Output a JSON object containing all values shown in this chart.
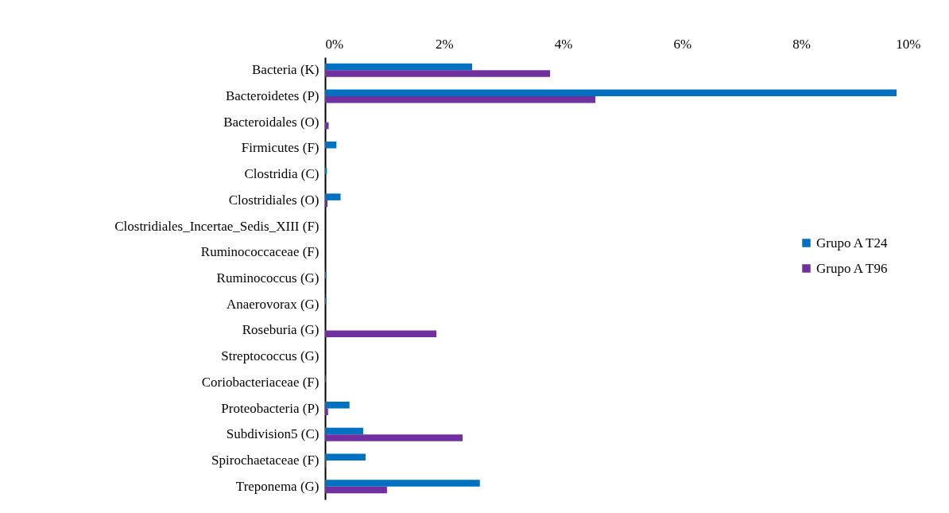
{
  "chart_data": {
    "type": "bar",
    "orientation": "horizontal",
    "categories": [
      "Bacteria (K)",
      "Bacteroidetes (P)",
      "Bacteroidales (O)",
      "Firmicutes (F)",
      "Clostridia (C)",
      "Clostridiales (O)",
      "Clostridiales_Incertae_Sedis_XIII (F)",
      "Ruminococcaceae (F)",
      "Ruminococcus (G)",
      "Anaerovorax (G)",
      "Roseburia (G)",
      "Streptococcus (G)",
      "Coriobacteriaceae (F)",
      "Proteobacteria (P)",
      "Subdivision5 (C)",
      "Spirochaetaceae (F)",
      "Treponema (G)"
    ],
    "series": [
      {
        "name": "Grupo A T24",
        "color": "#0070c0",
        "values": [
          2.47,
          9.6,
          0,
          0.19,
          0.03,
          0.26,
          0,
          0,
          0.02,
          0.02,
          0,
          0,
          0.01,
          0.41,
          0.64,
          0.68,
          2.6
        ]
      },
      {
        "name": "Grupo A T96",
        "color": "#7030a0",
        "values": [
          3.78,
          4.54,
          0.06,
          0,
          0,
          0.04,
          0,
          0,
          0,
          0,
          1.87,
          0,
          0,
          0.05,
          2.31,
          0.01,
          1.04
        ]
      }
    ],
    "xlim": [
      0,
      10
    ],
    "xticks": [
      {
        "value": 0,
        "label": "0%"
      },
      {
        "value": 2,
        "label": "2%"
      },
      {
        "value": 4,
        "label": "4%"
      },
      {
        "value": 6,
        "label": "6%"
      },
      {
        "value": 8,
        "label": "8%"
      },
      {
        "value": 10,
        "label": "10%"
      }
    ],
    "legend": "right"
  }
}
